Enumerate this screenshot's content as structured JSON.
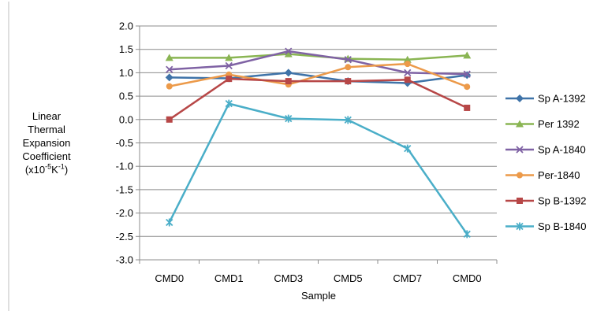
{
  "chart_data": {
    "type": "line",
    "title": "",
    "xlabel": "Sample",
    "ylabel": {
      "lines": [
        "Linear",
        "Thermal",
        "Expansion",
        "Coefficient"
      ],
      "unit_prefix": "(x10",
      "unit_exp1": "-5",
      "unit_mid": "K",
      "unit_exp2": "-1",
      "unit_suffix": ")"
    },
    "categories": [
      "CMD0",
      "CMD1",
      "CMD3",
      "CMD5",
      "CMD7",
      "CMD0"
    ],
    "ylim": [
      -3.0,
      2.0
    ],
    "yticks": [
      "2.0",
      "1.5",
      "1.0",
      "0.5",
      "0.0",
      "-0.5",
      "-1.0",
      "-1.5",
      "-2.0",
      "-2.5",
      "-3.0"
    ],
    "grid": true,
    "legend_position": "right",
    "series": [
      {
        "name": "Sp A-1392",
        "color": "#3f73a8",
        "marker": "diamond",
        "values": [
          0.9,
          0.88,
          1.0,
          0.82,
          0.78,
          0.95
        ]
      },
      {
        "name": "Per 1392",
        "color": "#8ab553",
        "marker": "triangle",
        "values": [
          1.32,
          1.32,
          1.4,
          1.3,
          1.28,
          1.37
        ]
      },
      {
        "name": "Sp A-1840",
        "color": "#7f62a4",
        "marker": "x",
        "values": [
          1.07,
          1.15,
          1.46,
          1.28,
          1.0,
          0.97
        ]
      },
      {
        "name": "Per-1840",
        "color": "#ec9a4a",
        "marker": "circle",
        "values": [
          0.71,
          0.96,
          0.75,
          1.12,
          1.19,
          0.7
        ]
      },
      {
        "name": "Sp B-1392",
        "color": "#b74747",
        "marker": "square",
        "values": [
          0.0,
          0.87,
          0.82,
          0.82,
          0.85,
          0.25
        ]
      },
      {
        "name": "Sp B-1840",
        "color": "#4aaec8",
        "marker": "star",
        "values": [
          -2.2,
          0.34,
          0.02,
          -0.01,
          -0.62,
          -2.45
        ]
      }
    ]
  }
}
